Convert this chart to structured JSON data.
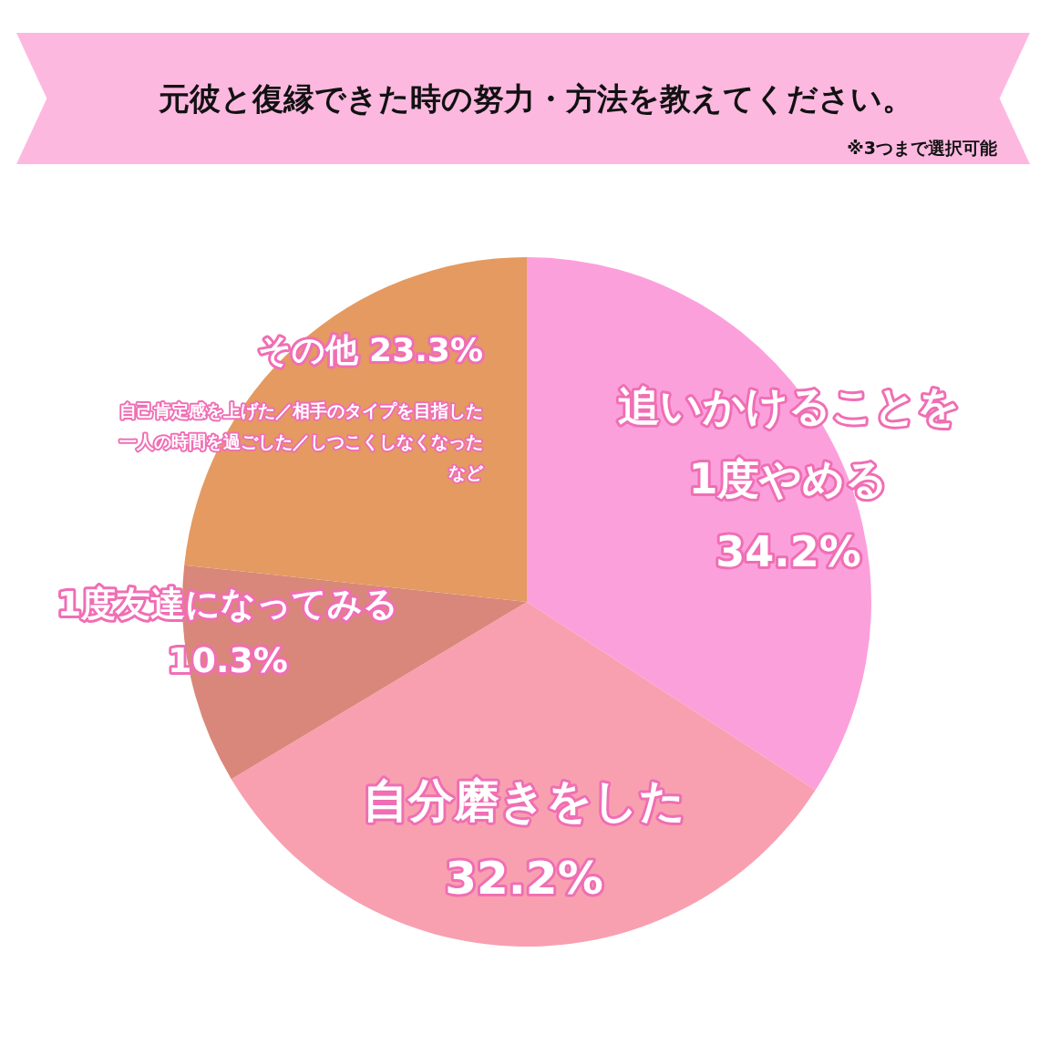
{
  "chart_data": {
    "type": "pie",
    "title": "元彼と復縁できた時の努力・方法を教えてください。",
    "subtitle": "※3つまで選択可能",
    "categories": [
      "追いかけることを1度やめる",
      "自分磨きをした",
      "1度友達になってみる",
      "その他"
    ],
    "values": [
      34.2,
      32.2,
      10.3,
      23.3
    ],
    "value_labels": [
      "34.2%",
      "32.2%",
      "10.3%",
      "23.3%"
    ],
    "colors": [
      "#fca0dc",
      "#f8a0b0",
      "#d9877a",
      "#e49a60"
    ],
    "annotations": [
      "自己肯定感を上げた／相手のタイプを目指した一人の時間を過ごした／しつこくしなくなったなど"
    ],
    "legend": false
  }
}
